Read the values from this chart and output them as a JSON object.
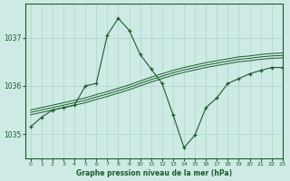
{
  "title": "Graphe pression niveau de la mer (hPa)",
  "background_color": "#ceeae4",
  "grid_color": "#aed4cc",
  "line_color": "#1a5c2a",
  "xlim": [
    -0.5,
    23
  ],
  "ylim": [
    1034.5,
    1037.7
  ],
  "yticks": [
    1035,
    1036,
    1037
  ],
  "xticks": [
    0,
    1,
    2,
    3,
    4,
    5,
    6,
    7,
    8,
    9,
    10,
    11,
    12,
    13,
    14,
    15,
    16,
    17,
    18,
    19,
    20,
    21,
    22,
    23
  ],
  "main_series": {
    "x": [
      0,
      1,
      2,
      3,
      4,
      5,
      6,
      7,
      8,
      9,
      10,
      11,
      12,
      13,
      14,
      15,
      16,
      17,
      18,
      19,
      20,
      21,
      22,
      23
    ],
    "y": [
      1035.15,
      1035.35,
      1035.5,
      1035.55,
      1035.6,
      1036.0,
      1036.05,
      1037.05,
      1037.4,
      1037.15,
      1036.65,
      1036.35,
      1036.05,
      1035.4,
      1034.72,
      1034.98,
      1035.55,
      1035.75,
      1036.05,
      1036.15,
      1036.25,
      1036.32,
      1036.38,
      1036.38
    ]
  },
  "trend_series": [
    {
      "x": [
        0,
        1,
        2,
        3,
        4,
        5,
        6,
        7,
        8,
        9,
        10,
        11,
        12,
        13,
        14,
        15,
        16,
        17,
        18,
        19,
        20,
        21,
        22,
        23
      ],
      "y": [
        1035.5,
        1035.55,
        1035.6,
        1035.65,
        1035.7,
        1035.75,
        1035.82,
        1035.88,
        1035.95,
        1036.02,
        1036.1,
        1036.18,
        1036.25,
        1036.32,
        1036.38,
        1036.43,
        1036.48,
        1036.52,
        1036.56,
        1036.6,
        1036.62,
        1036.65,
        1036.67,
        1036.68
      ]
    },
    {
      "x": [
        0,
        1,
        2,
        3,
        4,
        5,
        6,
        7,
        8,
        9,
        10,
        11,
        12,
        13,
        14,
        15,
        16,
        17,
        18,
        19,
        20,
        21,
        22,
        23
      ],
      "y": [
        1035.45,
        1035.5,
        1035.55,
        1035.6,
        1035.65,
        1035.7,
        1035.77,
        1035.83,
        1035.9,
        1035.97,
        1036.05,
        1036.13,
        1036.2,
        1036.27,
        1036.33,
        1036.38,
        1036.43,
        1036.47,
        1036.51,
        1036.55,
        1036.57,
        1036.6,
        1036.62,
        1036.63
      ]
    },
    {
      "x": [
        0,
        1,
        2,
        3,
        4,
        5,
        6,
        7,
        8,
        9,
        10,
        11,
        12,
        13,
        14,
        15,
        16,
        17,
        18,
        19,
        20,
        21,
        22,
        23
      ],
      "y": [
        1035.4,
        1035.45,
        1035.5,
        1035.55,
        1035.6,
        1035.65,
        1035.72,
        1035.78,
        1035.85,
        1035.92,
        1036.0,
        1036.08,
        1036.15,
        1036.22,
        1036.28,
        1036.33,
        1036.38,
        1036.42,
        1036.46,
        1036.5,
        1036.52,
        1036.55,
        1036.57,
        1036.58
      ]
    }
  ]
}
